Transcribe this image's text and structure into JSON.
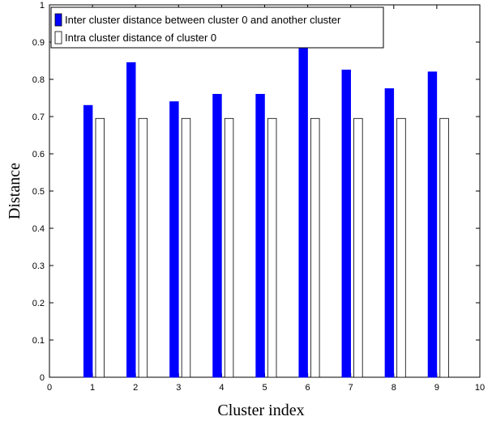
{
  "chart_data": {
    "type": "bar",
    "xlabel": "Cluster index",
    "ylabel": "Distance",
    "xlim": [
      0,
      10
    ],
    "ylim": [
      0,
      1
    ],
    "x_ticks": [
      "0",
      "1",
      "2",
      "3",
      "4",
      "5",
      "6",
      "7",
      "8",
      "9",
      "10"
    ],
    "y_ticks": [
      "0",
      "0.1",
      "0.2",
      "0.3",
      "0.4",
      "0.5",
      "0.6",
      "0.7",
      "0.8",
      "0.9",
      "1"
    ],
    "categories": [
      1,
      2,
      3,
      4,
      5,
      6,
      7,
      8,
      9
    ],
    "series": [
      {
        "name": "Inter cluster distance between cluster 0 and another cluster",
        "color": "#0000ff",
        "values": [
          0.73,
          0.845,
          0.74,
          0.76,
          0.76,
          0.885,
          0.825,
          0.775,
          0.82
        ]
      },
      {
        "name": "Intra cluster distance of cluster 0",
        "color": "#ffffff",
        "values": [
          0.695,
          0.695,
          0.695,
          0.695,
          0.695,
          0.695,
          0.695,
          0.695,
          0.695
        ]
      }
    ],
    "legend_position": "top-left",
    "grid": false
  }
}
